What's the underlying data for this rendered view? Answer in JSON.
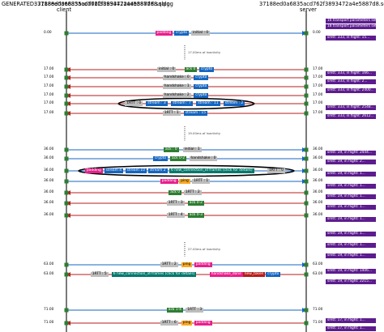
{
  "title": "GENERATED: 37188ed0a6835acd762f3893472a4e5887d8.sqlog",
  "client": {
    "file": "37188ed0a6835acd762f3893472a4e5887d8.sqlog",
    "role": "client"
  },
  "server": {
    "file": "37188ed0a6835acd762f3893472a4e5887d8.sqlog",
    "role": "server"
  },
  "colors": {
    "c2s": "#1565c0",
    "s2c": "#b71c1c",
    "timeline": "#222222",
    "side": "#5c1c8e",
    "marker": "#2e7d32"
  },
  "gaps": [
    "17.00ms of inactivity",
    "19.00ms of inactivity",
    "27.00ms of inactivity"
  ],
  "events": [
    {
      "dir": "c2s",
      "client_t": "0.00",
      "server_t": "0.00",
      "frames": [
        {
          "t": "padding",
          "c": "#e91e8c"
        },
        {
          "t": "crypto",
          "c": "#1565c0"
        },
        {
          "t": "initial : 0",
          "c": "#bdbdbd"
        }
      ]
    },
    {
      "dir": "s2c",
      "client_t": "17.00",
      "server_t": "17.00",
      "frames": [
        {
          "t": "initial : 0",
          "c": "#bdbdbd"
        },
        {
          "t": "ack 0",
          "c": "#2e7d32"
        },
        {
          "t": "crypto",
          "c": "#1565c0"
        }
      ]
    },
    {
      "dir": "s2c",
      "client_t": "17.00",
      "server_t": "17.00",
      "frames": [
        {
          "t": "handshake : 0",
          "c": "#bdbdbd"
        },
        {
          "t": "crypto",
          "c": "#1565c0"
        }
      ]
    },
    {
      "dir": "s2c",
      "client_t": "17.00",
      "server_t": "17.00",
      "frames": [
        {
          "t": "handshake : 1",
          "c": "#bdbdbd"
        },
        {
          "t": "crypto",
          "c": "#1565c0"
        }
      ]
    },
    {
      "dir": "s2c",
      "client_t": "17.00",
      "server_t": "17.00",
      "frames": [
        {
          "t": "handshake : 2",
          "c": "#bdbdbd"
        },
        {
          "t": "crypto",
          "c": "#1565c0"
        }
      ]
    },
    {
      "dir": "s2c",
      "client_t": "17.00",
      "server_t": "17.00",
      "frames": [
        {
          "t": "1RTT : 0",
          "c": "#bdbdbd"
        },
        {
          "t": "stream : 3",
          "c": "#1565c0"
        },
        {
          "t": "stream : 7",
          "c": "#1565c0"
        },
        {
          "t": "stream : 11",
          "c": "#1565c0"
        },
        {
          "t": "stream : 2",
          "c": "#1565c0"
        }
      ]
    },
    {
      "dir": "s2c",
      "client_t": "17.00",
      "server_t": "17.00",
      "frames": [
        {
          "t": "1RTT : 1",
          "c": "#bdbdbd"
        },
        {
          "t": "stream : 15",
          "c": "#1565c0"
        }
      ]
    },
    {
      "dir": "c2s",
      "client_t": "36.00",
      "server_t": "36.00",
      "frames": [
        {
          "t": "ack : 0",
          "c": "#2e7d32"
        },
        {
          "t": "initial : 1",
          "c": "#bdbdbd"
        }
      ]
    },
    {
      "dir": "c2s",
      "client_t": "36.00",
      "server_t": "36.00",
      "frames": [
        {
          "t": "crypto",
          "c": "#1565c0"
        },
        {
          "t": "ack 0-2",
          "c": "#2e7d32"
        },
        {
          "t": "handshake : 0",
          "c": "#bdbdbd"
        }
      ]
    },
    {
      "dir": "c2s",
      "client_t": "36.00",
      "server_t": "36.00",
      "frames": [
        {
          "t": "padding",
          "c": "#e91e8c"
        },
        {
          "t": "stream 4",
          "c": "#1565c0"
        },
        {
          "t": "stream 10",
          "c": "#1565c0"
        },
        {
          "t": "stream 2",
          "c": "#1565c0"
        },
        {
          "t": "6 new_connection_id frames (click for details)",
          "c": "#00796b"
        },
        {
          "t": "1RTT : 0",
          "c": "#bdbdbd"
        }
      ]
    },
    {
      "dir": "c2s",
      "client_t": "36.00",
      "server_t": "36.00",
      "frames": [
        {
          "t": "padding",
          "c": "#e91e8c"
        },
        {
          "t": "ping",
          "c": "#f9a825"
        },
        {
          "t": "1RTT : 1",
          "c": "#bdbdbd"
        }
      ]
    },
    {
      "dir": "s2c",
      "client_t": "36.00",
      "server_t": "36.00",
      "frames": [
        {
          "t": "ack 0",
          "c": "#2e7d32"
        },
        {
          "t": "1RTT : 2",
          "c": "#bdbdbd"
        }
      ]
    },
    {
      "dir": "s2c",
      "client_t": "36.00",
      "server_t": "36.00",
      "frames": [
        {
          "t": "1RTT : 3",
          "c": "#bdbdbd"
        },
        {
          "t": "ack 0-2",
          "c": "#2e7d32"
        }
      ]
    },
    {
      "dir": "s2c",
      "client_t": "36.00",
      "server_t": "36.00",
      "frames": [
        {
          "t": "1RTT : 4",
          "c": "#bdbdbd"
        },
        {
          "t": "ack 0-3",
          "c": "#2e7d32"
        }
      ]
    },
    {
      "dir": "c2s",
      "client_t": "63.00",
      "server_t": "63.00",
      "frames": [
        {
          "t": "1RTT : 2",
          "c": "#bdbdbd"
        },
        {
          "t": "ping",
          "c": "#f9a825"
        },
        {
          "t": "padding",
          "c": "#e91e8c"
        }
      ]
    },
    {
      "dir": "s2c",
      "client_t": "63.00",
      "server_t": "63.00",
      "frames": [
        {
          "t": "1RTT : 5",
          "c": "#bdbdbd"
        },
        {
          "t": "6 new_connection_id frames (click for details)",
          "c": "#00796b"
        },
        {
          "t": "handshake_done",
          "c": "#e91e8c"
        },
        {
          "t": "new_token",
          "c": "#b71c1c"
        },
        {
          "t": "crypto",
          "c": "#1565c0"
        }
      ]
    },
    {
      "dir": "c2s",
      "client_t": "71.00",
      "server_t": "71.00",
      "frames": [
        {
          "t": "ack 1-4",
          "c": "#2e7d32"
        },
        {
          "t": "1RTT : 3",
          "c": "#bdbdbd"
        }
      ]
    },
    {
      "dir": "s2c",
      "client_t": "71.00",
      "server_t": "71.00",
      "frames": [
        {
          "t": "1RTT : 6",
          "c": "#bdbdbd"
        },
        {
          "t": "ping",
          "c": "#f9a825"
        },
        {
          "t": "padding",
          "c": "#e91e8c"
        }
      ]
    }
  ],
  "side_labels": [
    "16 transport parameters set",
    "18 transport parameters set",
    "smtt: 333, in flight: 15...",
    "smtt: 333, in flight: 166...",
    "smtt: 333, in flight: 2...",
    "smtt: 333, in flight: 2400...",
    "smtt: 333, in flight: 2548...",
    "smtt: 333, in flight: 2612...",
    "smtt: 19, in flight: 2444...",
    "smtt: 19, in flight: 2...",
    "smtt: 19, in flight: 1...",
    "smtt: 19, in flight: 1...",
    "smtt: 19, in flight: 1...",
    "smtt: 19, in flight: 1...",
    "smtt: 19, in flight: 1...",
    "smtt: 19, in flight: 1...",
    "smtt: 19, in flight: 1...",
    "smtt: 19, in flight: 1...",
    "smtt: 19, in flight: 1406...",
    "smtt: 19, in flight: 2215...",
    "smtt: 17, in flight: 1...",
    "smtt: 17, in flight: 1..."
  ]
}
